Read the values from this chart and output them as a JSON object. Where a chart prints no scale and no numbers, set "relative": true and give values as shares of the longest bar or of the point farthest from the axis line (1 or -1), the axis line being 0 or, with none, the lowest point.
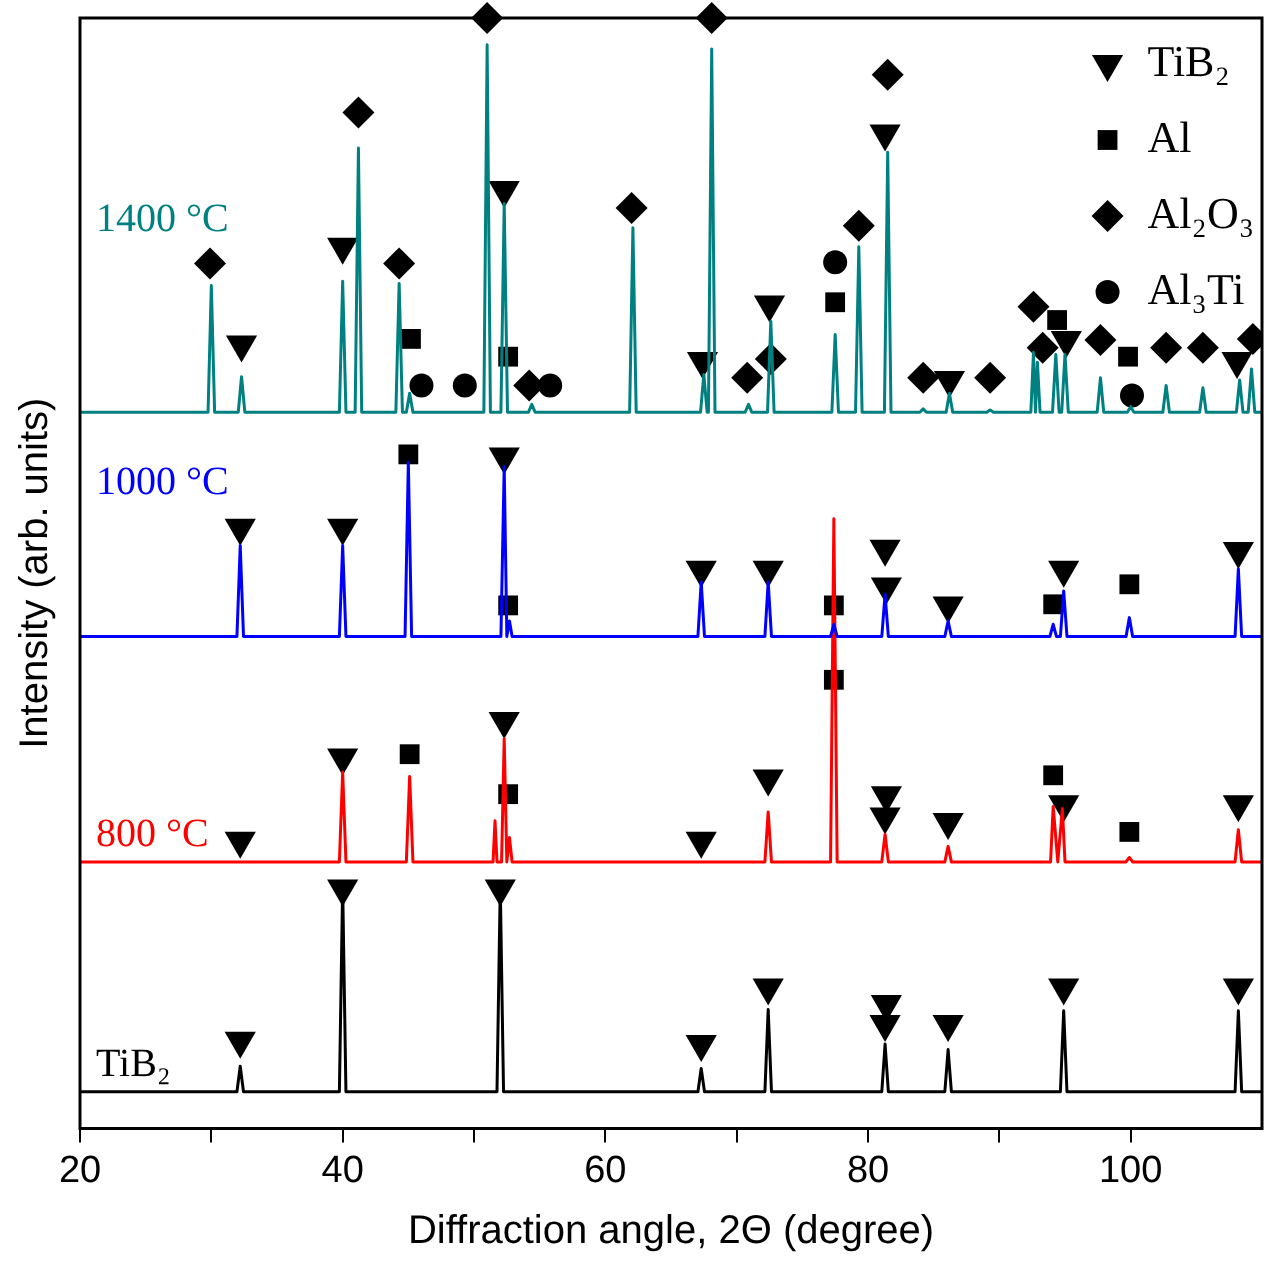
{
  "chart_data": {
    "type": "line",
    "xlabel": "Diffraction angle, 2Θ (degree)",
    "ylabel": "Intensity (arb. units)",
    "relative": true,
    "tick_labels": "x",
    "legend": "top right",
    "xlim": [
      20,
      110
    ],
    "xticks": [
      20,
      {
        "value": 30,
        "label": null
      },
      40,
      {
        "value": 50,
        "label": null
      },
      60,
      {
        "value": 70,
        "label": null
      },
      80,
      {
        "value": 90,
        "label": null
      },
      100
    ],
    "series": [
      {
        "name": "1400 °C",
        "color": "#008080",
        "marker": "none",
        "x": [
          20,
          29.75,
          30,
          30.25,
          32.05,
          32.3,
          32.55,
          39.75,
          40,
          40.25,
          40.95,
          41.2,
          41.45,
          44.05,
          44.3,
          44.55,
          44.85,
          45.1,
          45.35,
          50.75,
          51,
          51.25,
          52.05,
          52.3,
          52.55,
          54.15,
          54.4,
          54.65,
          61.85,
          62.1,
          62.35,
          67.25,
          67.5,
          67.75,
          67.85,
          68.1,
          68.35,
          70.65,
          70.9,
          71.15,
          72.35,
          72.6,
          72.85,
          77.25,
          77.5,
          77.75,
          79.05,
          79.3,
          79.55,
          81.25,
          81.5,
          81.75,
          83.95,
          84.2,
          84.45,
          85.95,
          86.2,
          86.45,
          89.05,
          89.3,
          89.55,
          92.4,
          92.6,
          92.75,
          92.9,
          93.1,
          94.05,
          94.3,
          94.55,
          94.75,
          95,
          95.25,
          97.45,
          97.7,
          97.95,
          99.75,
          100,
          100.25,
          102.45,
          102.7,
          102.95,
          105.25,
          105.5,
          105.75,
          108.05,
          108.3,
          108.55,
          108.95,
          109.2,
          109.45,
          110
        ],
        "values": [
          0.645,
          0.645,
          0.759,
          0.645,
          0.645,
          0.677,
          0.645,
          0.645,
          0.763,
          0.645,
          0.645,
          0.883,
          0.645,
          0.645,
          0.761,
          0.645,
          0.645,
          0.662,
          0.645,
          0.645,
          0.976,
          0.645,
          0.645,
          0.833,
          0.645,
          0.645,
          0.652,
          0.645,
          0.645,
          0.811,
          0.645,
          0.645,
          0.679,
          0.645,
          0.645,
          0.972,
          0.645,
          0.645,
          0.652,
          0.645,
          0.645,
          0.727,
          0.645,
          0.645,
          0.715,
          0.645,
          0.645,
          0.794,
          0.645,
          0.645,
          0.879,
          0.645,
          0.645,
          0.648,
          0.645,
          0.645,
          0.662,
          0.645,
          0.645,
          0.647,
          0.645,
          0.645,
          0.699,
          0.645,
          0.69,
          0.645,
          0.645,
          0.697,
          0.645,
          0.645,
          0.697,
          0.645,
          0.645,
          0.676,
          0.645,
          0.645,
          0.65,
          0.645,
          0.645,
          0.669,
          0.645,
          0.645,
          0.667,
          0.645,
          0.645,
          0.674,
          0.645,
          0.645,
          0.684,
          0.645,
          0.645
        ]
      },
      {
        "name": "1000 °C",
        "color": "#0000ff",
        "marker": "none",
        "x": [
          20,
          31.95,
          32.2,
          32.45,
          39.75,
          40,
          40.25,
          44.75,
          45,
          45.25,
          52.05,
          52.3,
          52.5,
          52.7,
          52.9,
          67.05,
          67.3,
          67.55,
          72.15,
          72.4,
          72.65,
          77.15,
          77.4,
          77.65,
          81.05,
          81.3,
          81.55,
          85.85,
          86.1,
          86.35,
          93.85,
          94.1,
          94.35,
          94.65,
          94.9,
          95.15,
          99.65,
          99.9,
          100.15,
          107.95,
          108.2,
          108.45,
          110
        ],
        "values": [
          0.443,
          0.443,
          0.525,
          0.443,
          0.443,
          0.525,
          0.443,
          0.443,
          0.6,
          0.443,
          0.443,
          0.596,
          0.443,
          0.457,
          0.443,
          0.443,
          0.492,
          0.443,
          0.443,
          0.492,
          0.443,
          0.443,
          0.454,
          0.443,
          0.443,
          0.481,
          0.443,
          0.443,
          0.457,
          0.443,
          0.443,
          0.454,
          0.443,
          0.443,
          0.484,
          0.443,
          0.443,
          0.46,
          0.443,
          0.443,
          0.504,
          0.443,
          0.443
        ]
      },
      {
        "name": "800 °C",
        "color": "#ff0000",
        "marker": "none",
        "x": [
          20,
          39.75,
          40,
          40.25,
          44.85,
          45.1,
          45.35,
          51.45,
          51.6,
          51.75,
          52.1,
          52.3,
          52.5,
          52.7,
          52.9,
          72.15,
          72.4,
          72.65,
          77.15,
          77.4,
          77.65,
          81.05,
          81.3,
          81.55,
          85.85,
          86.1,
          86.35,
          93.9,
          94.1,
          94.45,
          94.8,
          95.0,
          99.65,
          99.9,
          100.15,
          107.95,
          108.2,
          108.45,
          110
        ],
        "values": [
          0.24,
          0.24,
          0.321,
          0.24,
          0.24,
          0.317,
          0.24,
          0.24,
          0.277,
          0.24,
          0.24,
          0.351,
          0.24,
          0.262,
          0.24,
          0.24,
          0.285,
          0.24,
          0.24,
          0.549,
          0.24,
          0.24,
          0.265,
          0.24,
          0.24,
          0.254,
          0.24,
          0.24,
          0.29,
          0.24,
          0.288,
          0.24,
          0.24,
          0.244,
          0.24,
          0.24,
          0.269,
          0.24,
          0.24
        ]
      },
      {
        "name": "TiB₂",
        "color": "#000000",
        "marker": "none",
        "x": [
          20,
          31.95,
          32.2,
          32.45,
          39.75,
          40,
          40.25,
          51.75,
          52,
          52.25,
          67.05,
          67.3,
          67.55,
          72.15,
          72.4,
          72.65,
          81.05,
          81.3,
          81.55,
          85.85,
          86.1,
          86.35,
          94.65,
          94.9,
          95.15,
          107.95,
          108.2,
          108.45,
          110
        ],
        "values": [
          0.033,
          0.033,
          0.056,
          0.033,
          0.033,
          0.218,
          0.033,
          0.033,
          0.218,
          0.033,
          0.033,
          0.054,
          0.033,
          0.033,
          0.107,
          0.033,
          0.033,
          0.076,
          0.033,
          0.033,
          0.071,
          0.033,
          0.033,
          0.106,
          0.033,
          0.033,
          0.106,
          0.033,
          0.033
        ]
      },
      {
        "name": "TiB₂",
        "type": "scatter",
        "color": "#000000",
        "marker": "triangle",
        "x": [
          32.3,
          40.0,
          52.3,
          67.4,
          72.5,
          81.3,
          86.2,
          95.1,
          108.1,
          32.2,
          40.0,
          52.3,
          67.3,
          72.4,
          81.3,
          81.4,
          86.1,
          94.9,
          108.2,
          32.2,
          40.0,
          52.3,
          67.3,
          72.4,
          81.4,
          81.3,
          86.1,
          94.9,
          108.2,
          32.2,
          40.0,
          52.0,
          67.3,
          72.4,
          81.4,
          81.3,
          86.1,
          94.9,
          108.2
        ],
        "values": [
          0.706,
          0.794,
          0.845,
          0.691,
          0.742,
          0.896,
          0.674,
          0.71,
          0.691,
          0.541,
          0.541,
          0.605,
          0.503,
          0.503,
          0.522,
          0.488,
          0.471,
          0.503,
          0.52,
          0.259,
          0.334,
          0.367,
          0.259,
          0.315,
          0.3,
          0.281,
          0.276,
          0.292,
          0.292,
          0.079,
          0.216,
          0.216,
          0.076,
          0.127,
          0.112,
          0.094,
          0.094,
          0.127,
          0.127
        ]
      },
      {
        "name": "Al",
        "type": "scatter",
        "color": "#000000",
        "marker": "square",
        "x": [
          45.2,
          52.6,
          77.5,
          94.4,
          99.8,
          45.0,
          52.6,
          77.4,
          94.1,
          99.9,
          45.1,
          52.6,
          77.4,
          94.1,
          99.9
        ],
        "values": [
          0.711,
          0.695,
          0.744,
          0.728,
          0.695,
          0.607,
          0.471,
          0.471,
          0.472,
          0.49,
          0.337,
          0.301,
          0.404,
          0.318,
          0.267
        ]
      },
      {
        "name": "Al₂O₃",
        "type": "scatter",
        "color": "#000000",
        "marker": "diamond",
        "x": [
          29.9,
          41.2,
          44.3,
          51.0,
          54.2,
          62.0,
          68.1,
          70.8,
          72.6,
          79.3,
          81.5,
          84.2,
          89.3,
          92.6,
          93.3,
          97.7,
          102.7,
          105.5,
          109.3
        ],
        "values": [
          0.779,
          0.915,
          0.779,
          1.0,
          0.669,
          0.829,
          1.0,
          0.676,
          0.693,
          0.813,
          0.949,
          0.676,
          0.676,
          0.74,
          0.703,
          0.71,
          0.703,
          0.703,
          0.711
        ]
      },
      {
        "name": "Al₃Ti",
        "type": "scatter",
        "color": "#000000",
        "marker": "circle",
        "x": [
          46.0,
          49.3,
          55.8,
          77.5,
          100.1
        ],
        "values": [
          0.669,
          0.669,
          0.669,
          0.78,
          0.66
        ]
      }
    ]
  }
}
